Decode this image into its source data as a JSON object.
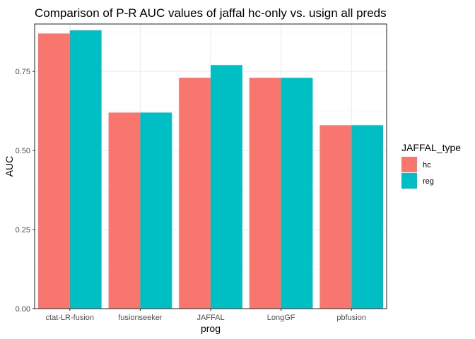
{
  "chart_data": {
    "type": "bar",
    "title": "Comparison of P-R AUC values of jaffal hc-only vs. usign all preds",
    "xlabel": "prog",
    "ylabel": "AUC",
    "categories": [
      "ctat-LR-fusion",
      "fusionseeker",
      "JAFFAL",
      "LongGF",
      "pbfusion"
    ],
    "series": [
      {
        "name": "hc",
        "color": "#F8766D",
        "values": [
          0.87,
          0.62,
          0.73,
          0.73,
          0.58
        ]
      },
      {
        "name": "reg",
        "color": "#00BFC4",
        "values": [
          0.88,
          0.62,
          0.77,
          0.73,
          0.58
        ]
      }
    ],
    "ylim": [
      0,
      0.9
    ],
    "yticks": [
      0,
      0.25,
      0.5,
      0.75
    ],
    "ytick_labels": [
      "0.00",
      "0.25",
      "0.50",
      "0.75"
    ],
    "grid": true,
    "legend": {
      "title": "JAFFAL_type",
      "position": "right"
    }
  }
}
